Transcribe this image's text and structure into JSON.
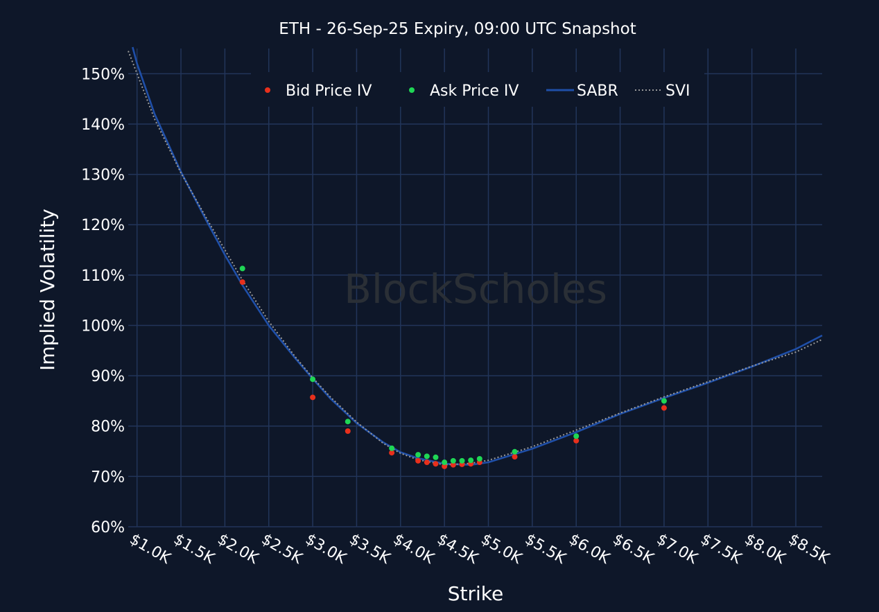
{
  "chart_data": {
    "type": "scatter",
    "title": "ETH - 26-Sep-25 Expiry, 09:00 UTC Snapshot",
    "xlabel": "Strike",
    "ylabel": "Implied Volatility",
    "watermark": "BlockScholes",
    "xlim": [
      900,
      8800
    ],
    "ylim": [
      60,
      155
    ],
    "x_ticks": [
      1000,
      1500,
      2000,
      2500,
      3000,
      3500,
      4000,
      4500,
      5000,
      5500,
      6000,
      6500,
      7000,
      7500,
      8000,
      8500
    ],
    "x_tick_labels": [
      "$1.0K",
      "$1.5K",
      "$2.0K",
      "$2.5K",
      "$3.0K",
      "$3.5K",
      "$4.0K",
      "$4.5K",
      "$5.0K",
      "$5.5K",
      "$6.0K",
      "$6.5K",
      "$7.0K",
      "$7.5K",
      "$8.0K",
      "$8.5K"
    ],
    "y_ticks": [
      60,
      70,
      80,
      90,
      100,
      110,
      120,
      130,
      140,
      150
    ],
    "y_tick_labels": [
      "60%",
      "70%",
      "80%",
      "90%",
      "100%",
      "110%",
      "120%",
      "130%",
      "140%",
      "150%"
    ],
    "grid": true,
    "legend_position": "top",
    "series": [
      {
        "name": "Bid Price IV",
        "kind": "scatter",
        "color": "#e8301c",
        "x": [
          2200,
          3000,
          3400,
          3900,
          4200,
          4300,
          4400,
          4500,
          4600,
          4700,
          4800,
          4900,
          5300,
          6000,
          7000
        ],
        "y": [
          108.6,
          85.7,
          79.0,
          74.7,
          73.1,
          72.8,
          72.5,
          72.0,
          72.3,
          72.4,
          72.5,
          72.8,
          73.9,
          77.1,
          83.6
        ]
      },
      {
        "name": "Ask Price IV",
        "kind": "scatter",
        "color": "#1fd655",
        "x": [
          2200,
          3000,
          3400,
          3900,
          4200,
          4300,
          4400,
          4500,
          4600,
          4700,
          4800,
          4900,
          5300,
          6000,
          7000
        ],
        "y": [
          111.3,
          89.3,
          80.9,
          75.6,
          74.3,
          74.0,
          73.8,
          72.8,
          73.1,
          73.1,
          73.2,
          73.5,
          74.9,
          78.0,
          85.0
        ]
      },
      {
        "name": "SABR",
        "kind": "line",
        "color": "#1f4fa8",
        "x": [
          950,
          1000,
          1200,
          1500,
          1800,
          2000,
          2200,
          2500,
          2800,
          3000,
          3200,
          3500,
          3800,
          4000,
          4200,
          4500,
          4800,
          5000,
          5500,
          6000,
          6500,
          7000,
          7500,
          8000,
          8500,
          8800
        ],
        "y": [
          157,
          152,
          142,
          130.5,
          120.5,
          114,
          108,
          100,
          93.5,
          89.4,
          85.5,
          80.6,
          76.8,
          74.8,
          73.6,
          72.5,
          72.3,
          72.8,
          75.5,
          78.8,
          82.4,
          85.6,
          88.6,
          91.8,
          95.3,
          98.0
        ]
      },
      {
        "name": "SVI",
        "kind": "dotted-line",
        "color": "#9a9a9a",
        "x": [
          900,
          1000,
          1200,
          1500,
          1800,
          2000,
          2200,
          2500,
          2800,
          3000,
          3200,
          3500,
          3800,
          4000,
          4200,
          4500,
          4800,
          5000,
          5500,
          6000,
          6500,
          7000,
          7500,
          8000,
          8500,
          8800
        ],
        "y": [
          154.5,
          150,
          141,
          130.3,
          121,
          115,
          109,
          100.8,
          93.8,
          89.6,
          85.8,
          80.8,
          76.6,
          74.6,
          73.3,
          72.3,
          72.6,
          73.2,
          75.9,
          79.2,
          82.6,
          85.8,
          88.8,
          91.9,
          94.7,
          97.2
        ]
      }
    ]
  }
}
